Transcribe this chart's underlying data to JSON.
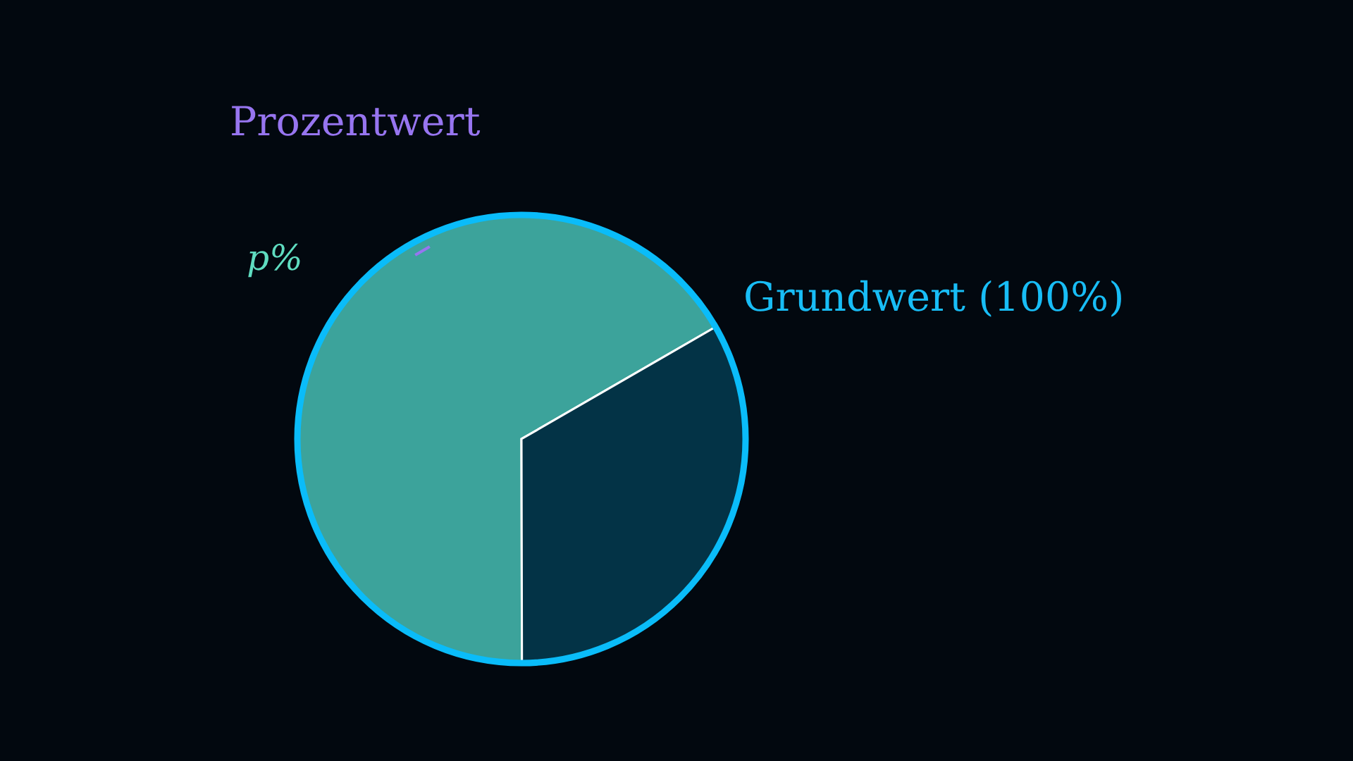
{
  "chart_data": {
    "type": "pie",
    "categories": [
      "p%",
      null
    ],
    "values": [
      66.7,
      33.3
    ],
    "colors": [
      "#3ca39b",
      "#033346"
    ],
    "annotations": [
      "Prozentwert",
      "Grundwert (100%)"
    ]
  }
}
